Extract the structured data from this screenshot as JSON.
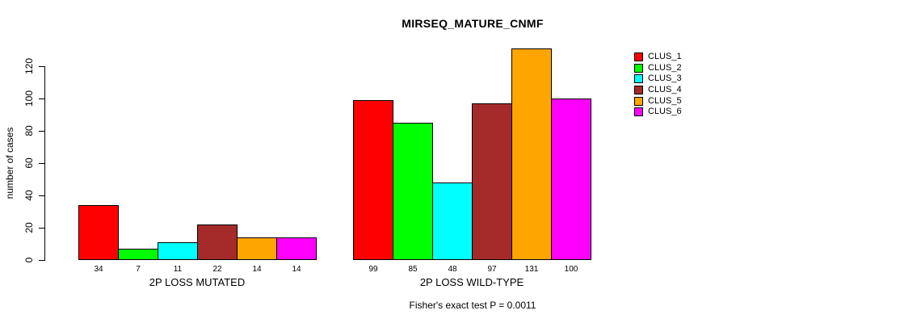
{
  "title": "MIRSEQ_MATURE_CNMF",
  "y_axis": {
    "label": "number of cases",
    "ticks": [
      0,
      20,
      40,
      60,
      80,
      100,
      120
    ]
  },
  "groups": [
    {
      "label": "2P LOSS MUTATED",
      "values": [
        34,
        7,
        11,
        22,
        14,
        14
      ]
    },
    {
      "label": "2P LOSS WILD-TYPE",
      "values": [
        99,
        85,
        48,
        97,
        131,
        100
      ]
    }
  ],
  "legend": {
    "items": [
      {
        "label": "CLUS_1",
        "color": "#FF0000"
      },
      {
        "label": "CLUS_2",
        "color": "#00FF00"
      },
      {
        "label": "CLUS_3",
        "color": "#00FFFF"
      },
      {
        "label": "CLUS_4",
        "color": "#A52A2A"
      },
      {
        "label": "CLUS_5",
        "color": "#FFA500"
      },
      {
        "label": "CLUS_6",
        "color": "#FF00FF"
      }
    ]
  },
  "footer": "Fisher's exact test P = 0.0011",
  "chart_data": {
    "type": "bar",
    "title": "MIRSEQ_MATURE_CNMF",
    "xlabel": "",
    "ylabel": "number of cases",
    "ylim": [
      0,
      131
    ],
    "yticks": [
      0,
      20,
      40,
      60,
      80,
      100,
      120
    ],
    "grid": false,
    "legend_position": "right",
    "bar_value_labels": true,
    "categories": [
      "2P LOSS MUTATED",
      "2P LOSS WILD-TYPE"
    ],
    "series": [
      {
        "name": "CLUS_1",
        "color": "#FF0000",
        "values": [
          34,
          99
        ]
      },
      {
        "name": "CLUS_2",
        "color": "#00FF00",
        "values": [
          7,
          85
        ]
      },
      {
        "name": "CLUS_3",
        "color": "#00FFFF",
        "values": [
          11,
          48
        ]
      },
      {
        "name": "CLUS_4",
        "color": "#A52A2A",
        "values": [
          22,
          97
        ]
      },
      {
        "name": "CLUS_5",
        "color": "#FFA500",
        "values": [
          14,
          131
        ]
      },
      {
        "name": "CLUS_6",
        "color": "#FF00FF",
        "values": [
          14,
          100
        ]
      }
    ],
    "annotation": "Fisher's exact test P = 0.0011"
  }
}
